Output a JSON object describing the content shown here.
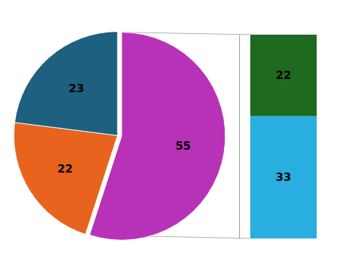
{
  "chart_data": [
    {
      "type": "pie",
      "values": [
        55,
        22,
        23
      ],
      "colors": [
        "#b832b8",
        "#e8641e",
        "#1e6080"
      ],
      "data_labels": true
    },
    {
      "type": "bar",
      "stacked": true,
      "categories": [
        null
      ],
      "series": [
        {
          "color": "#29aee0",
          "values": [
            33
          ]
        },
        {
          "color": "#1e6b20",
          "values": [
            22
          ]
        }
      ],
      "ylim": [
        0,
        55
      ],
      "data_labels": true,
      "tick_labels": false
    }
  ]
}
